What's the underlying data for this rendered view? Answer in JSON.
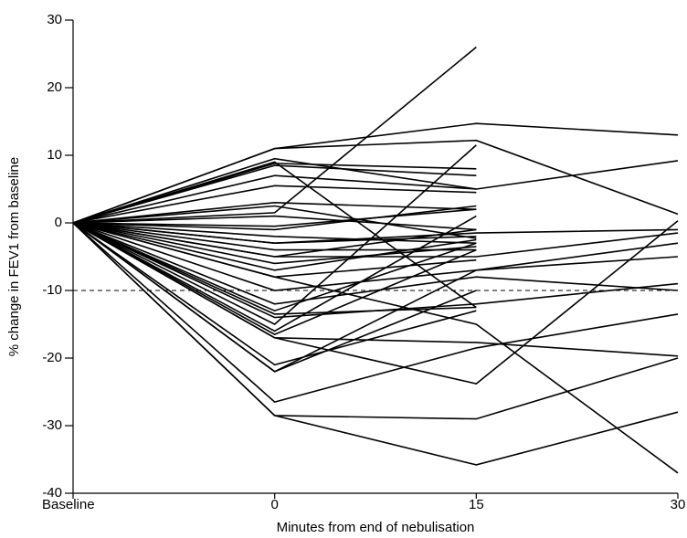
{
  "chart_data": {
    "type": "line",
    "x_label": "Minutes from end of nebulisation",
    "y_label": "% change in FEV1 from baseline",
    "categories": [
      "Baseline",
      "0",
      "15",
      "30"
    ],
    "ylim": [
      -40,
      30
    ],
    "yticks": [
      -40,
      -30,
      -20,
      -10,
      0,
      10,
      20,
      30
    ],
    "reference_line": -10,
    "color": "#000000",
    "series": [
      {
        "values": [
          0,
          11,
          14.7,
          13
        ]
      },
      {
        "values": [
          0,
          11,
          12.2,
          1.3
        ]
      },
      {
        "values": [
          0,
          9.5,
          5,
          9.2
        ]
      },
      {
        "values": [
          0,
          1.5,
          26,
          null
        ]
      },
      {
        "values": [
          0,
          -15,
          11.5,
          null
        ]
      },
      {
        "values": [
          0,
          -28.5,
          -29,
          -20
        ]
      },
      {
        "values": [
          0,
          -28.5,
          -35.8,
          -28
        ]
      },
      {
        "values": [
          0,
          -26.5,
          -18.5,
          -13.5
        ]
      },
      {
        "values": [
          0,
          -22,
          -7,
          -5
        ]
      },
      {
        "values": [
          0,
          -21,
          -13,
          null
        ]
      },
      {
        "values": [
          0,
          -17,
          -23.8,
          0.3
        ]
      },
      {
        "values": [
          0,
          -8,
          -15,
          -37
        ]
      },
      {
        "values": [
          0,
          -14,
          -12,
          -9
        ]
      },
      {
        "values": [
          0,
          -12,
          -8,
          -10
        ]
      },
      {
        "values": [
          0,
          -5,
          -5,
          -1.5
        ]
      },
      {
        "values": [
          0,
          -3,
          -1.5,
          -1
        ]
      },
      {
        "values": [
          0,
          -10,
          -7,
          -3
        ]
      },
      {
        "values": [
          0,
          -17,
          -17.7,
          -19.7
        ]
      },
      {
        "values": [
          0,
          8.8,
          8,
          null
        ]
      },
      {
        "values": [
          0,
          8.5,
          7,
          null
        ]
      },
      {
        "values": [
          0,
          7,
          5,
          null
        ]
      },
      {
        "values": [
          0,
          5.5,
          4.5,
          null
        ]
      },
      {
        "values": [
          0,
          3,
          2,
          null
        ]
      },
      {
        "values": [
          0,
          1,
          -1,
          null
        ]
      },
      {
        "values": [
          0,
          -1,
          2.5,
          null
        ]
      },
      {
        "values": [
          0,
          -2,
          -3,
          null
        ]
      },
      {
        "values": [
          0,
          -3,
          -2,
          null
        ]
      },
      {
        "values": [
          0,
          -4,
          -4,
          null
        ]
      },
      {
        "values": [
          0,
          -5,
          -1,
          null
        ]
      },
      {
        "values": [
          0,
          -6,
          -3.5,
          null
        ]
      },
      {
        "values": [
          0,
          -7,
          -2.5,
          null
        ]
      },
      {
        "values": [
          0,
          -8,
          -5.5,
          null
        ]
      },
      {
        "values": [
          0,
          -13,
          -3,
          null
        ]
      },
      {
        "values": [
          0,
          -13.5,
          -12.5,
          null
        ]
      },
      {
        "values": [
          0,
          -16,
          1,
          null
        ]
      },
      {
        "values": [
          0,
          -16.5,
          -4,
          null
        ]
      },
      {
        "values": [
          0,
          -22,
          -10,
          null
        ]
      },
      {
        "values": [
          0,
          9,
          -12.5,
          null
        ]
      },
      {
        "values": [
          0,
          2.5,
          -2.3,
          null
        ]
      },
      {
        "values": [
          0,
          -0.5,
          2,
          null
        ]
      }
    ]
  }
}
